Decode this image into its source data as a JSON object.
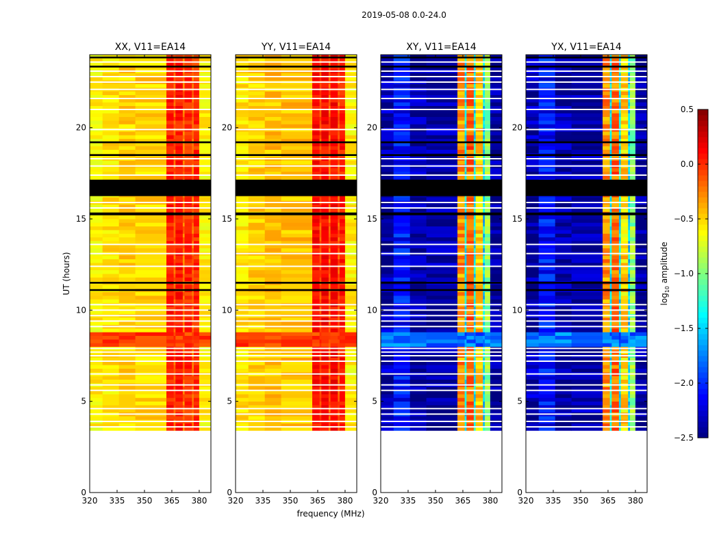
{
  "chart_data": {
    "type": "heatmap",
    "title": "2019-05-08 0.0-24.0",
    "xlabel": "frequency (MHz)",
    "ylabel": "UT (hours)",
    "xlim": [
      320,
      386.4
    ],
    "ylim": [
      0,
      24
    ],
    "xticks": [
      320,
      335,
      350,
      365,
      380
    ],
    "yticks": [
      0,
      5,
      10,
      15,
      20
    ],
    "data_time_range": [
      3.4,
      24
    ],
    "time_step_hours": 0.2,
    "colorbar": {
      "label": "log",
      "label_sub": "10",
      "label_rest": " amplitude",
      "colormap": "jet",
      "range": [
        -2.5,
        0.5
      ],
      "ticks": [
        "0.5",
        "0.0",
        "−0.5",
        "−1.0",
        "−1.5",
        "−2.0",
        "−2.5"
      ]
    },
    "freq_band_edges": [
      320,
      327,
      336,
      345,
      362,
      366,
      367,
      371,
      372,
      376,
      377,
      380,
      386.4
    ],
    "flagged_white_hours": [
      3.6,
      3.9,
      4.3,
      4.6,
      5.6,
      5.9,
      6.5,
      7.2,
      7.5,
      7.7,
      7.9,
      9.1,
      9.4,
      9.7,
      10.0,
      10.3,
      12.4,
      13.1,
      13.6,
      15.6,
      15.9,
      17.4,
      17.9,
      18.3,
      19.9,
      21.0,
      21.6,
      22.1,
      22.5,
      22.8,
      23.1,
      23.6
    ],
    "flagged_black_intervals": [
      [
        16.25,
        17.15
      ],
      [
        15.2,
        15.35
      ],
      [
        11.05,
        11.15
      ],
      [
        11.45,
        11.55
      ],
      [
        18.45,
        18.55
      ],
      [
        19.15,
        19.25
      ],
      [
        23.3,
        23.4
      ],
      [
        23.8,
        23.9
      ]
    ],
    "panels": [
      {
        "title": "XX, V11=EA14",
        "band_levels": [
          -0.6,
          -0.55,
          -0.5,
          -0.5,
          0.05,
          -0.15,
          0.05,
          -0.2,
          0.0,
          -0.2,
          0.0,
          -0.6
        ],
        "event_level": -0.05
      },
      {
        "title": "YY, V11=EA14",
        "band_levels": [
          -0.55,
          -0.5,
          -0.45,
          -0.45,
          0.1,
          -0.1,
          0.1,
          -0.15,
          0.1,
          -0.15,
          0.05,
          -0.6
        ],
        "event_level": -0.05
      },
      {
        "title": "XY, V11=EA14",
        "band_levels": [
          -2.35,
          -2.1,
          -2.4,
          -2.4,
          -0.3,
          -1.4,
          -0.2,
          -1.4,
          -0.5,
          -1.5,
          -0.95,
          -2.45
        ],
        "event_level": -1.8
      },
      {
        "title": "YX, V11=EA14",
        "band_levels": [
          -2.35,
          -2.1,
          -2.4,
          -2.4,
          -0.3,
          -1.4,
          -0.2,
          -1.4,
          -0.5,
          -1.5,
          -0.95,
          -2.45
        ],
        "event_level": -1.8
      }
    ],
    "event_band_hours": [
      8.0,
      8.8
    ]
  }
}
